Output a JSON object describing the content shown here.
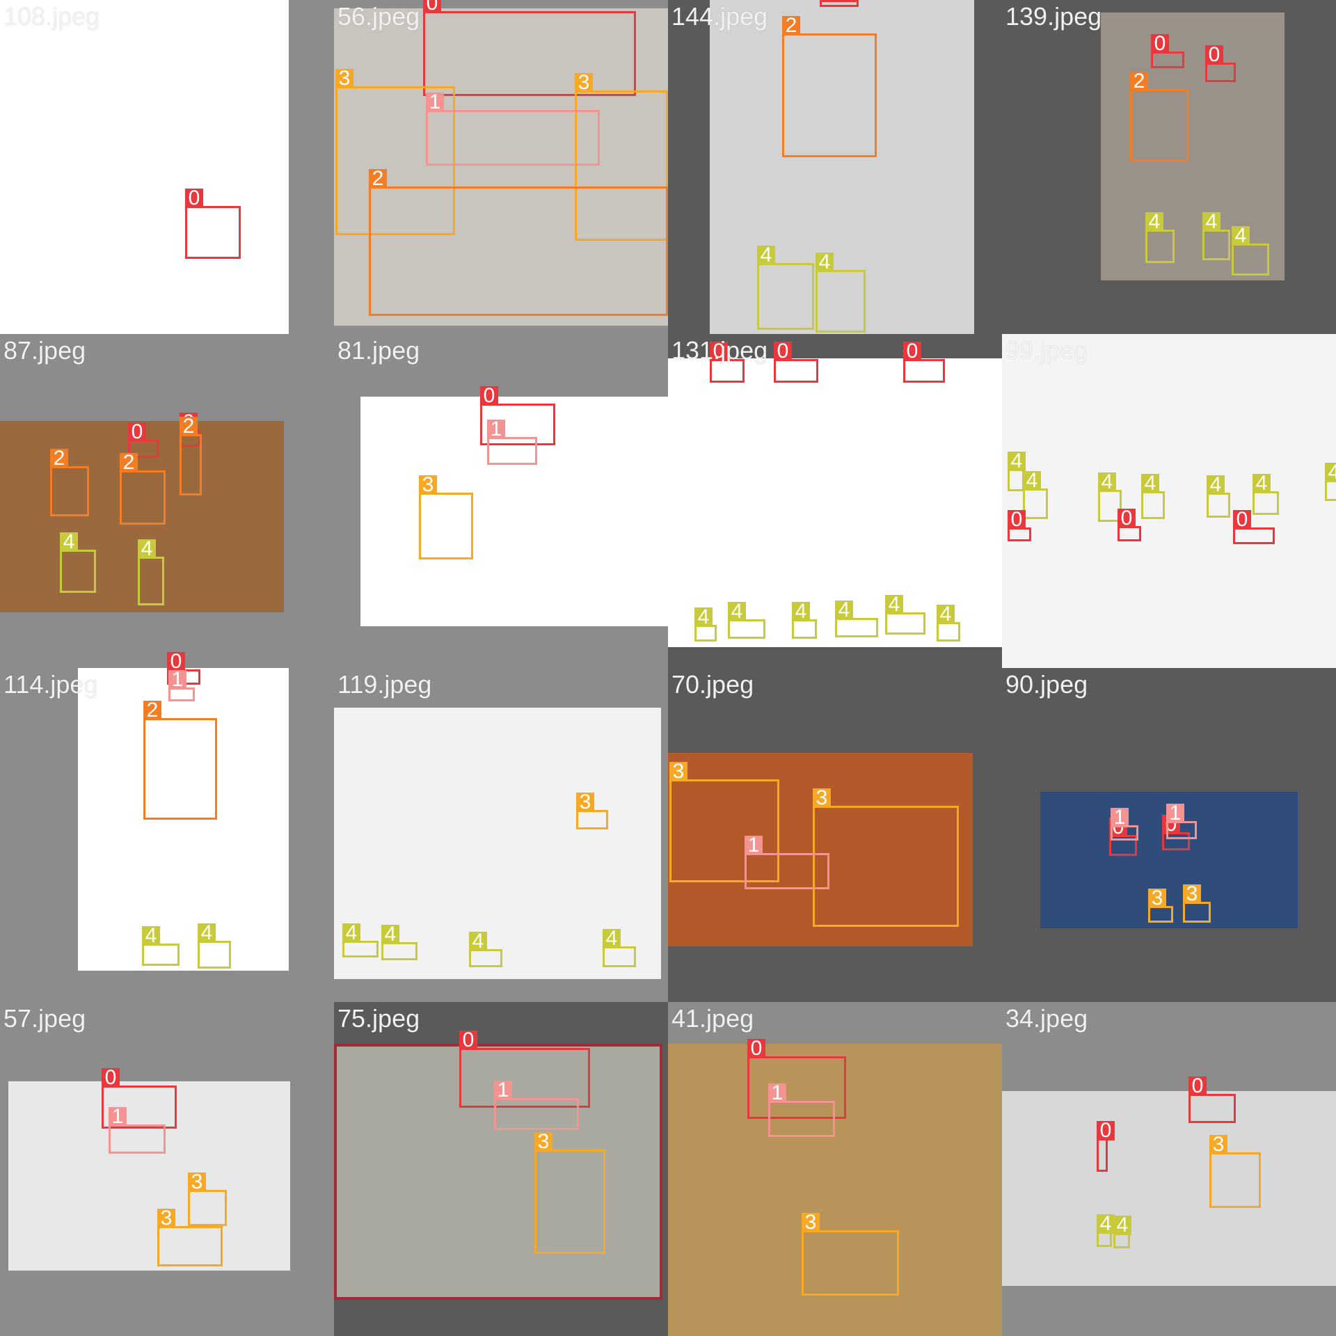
{
  "classes": {
    "0": {
      "color": "#e8383d"
    },
    "1": {
      "color": "#f59393"
    },
    "2": {
      "color": "#f27d25"
    },
    "3": {
      "color": "#f7a825"
    },
    "4": {
      "color": "#c7ca3a"
    }
  },
  "tiles": [
    {
      "filename": "108.jpeg",
      "bg": "#8c8c8c",
      "photo_color": "#ffffff",
      "labels": [
        "0"
      ]
    },
    {
      "filename": "56.jpeg",
      "bg": "#8c8c8c",
      "photo_color": "#c9c4bd",
      "labels": [
        "0",
        "3",
        "3",
        "1",
        "2"
      ]
    },
    {
      "filename": "144.jpeg",
      "bg": "#5a5a5a",
      "photo_color": "#d3d3d3",
      "labels": [
        "0",
        "2",
        "4",
        "4"
      ]
    },
    {
      "filename": "139.jpeg",
      "bg": "#5a5a5a",
      "photo_color": "#9a9288",
      "labels": [
        "0",
        "0",
        "2",
        "4",
        "4",
        "4"
      ]
    },
    {
      "filename": "87.jpeg",
      "bg": "#8c8c8c",
      "photo_color": "#9a6a3e",
      "labels": [
        "0",
        "0",
        "2",
        "2",
        "2",
        "4",
        "4"
      ]
    },
    {
      "filename": "81.jpeg",
      "bg": "#8c8c8c",
      "photo_color": "#ffffff",
      "labels": [
        "0",
        "1",
        "3"
      ]
    },
    {
      "filename": "131.jpeg",
      "bg": "#5a5a5a",
      "photo_color": "#ffffff",
      "labels": [
        "0",
        "0",
        "0",
        "4",
        "4",
        "4",
        "4",
        "4",
        "4"
      ]
    },
    {
      "filename": "99.jpeg",
      "bg": "#ffffff",
      "photo_color": "#f4f4f4",
      "labels": [
        "4",
        "4",
        "4",
        "4",
        "4",
        "4",
        "4",
        "0",
        "0",
        "0"
      ]
    },
    {
      "filename": "114.jpeg",
      "bg": "#8c8c8c",
      "photo_color": "#ffffff",
      "labels": [
        "0",
        "1",
        "2",
        "4",
        "4"
      ]
    },
    {
      "filename": "119.jpeg",
      "bg": "#8c8c8c",
      "photo_color": "#f2f2f2",
      "labels": [
        "3",
        "4",
        "4",
        "4",
        "4"
      ]
    },
    {
      "filename": "70.jpeg",
      "bg": "#5a5a5a",
      "photo_color": "#b45a2a",
      "labels": [
        "3",
        "3",
        "1"
      ]
    },
    {
      "filename": "90.jpeg",
      "bg": "#5a5a5a",
      "photo_color": "#2f4c7a",
      "labels": [
        "0",
        "0",
        "1",
        "1",
        "3",
        "3"
      ]
    },
    {
      "filename": "57.jpeg",
      "bg": "#8c8c8c",
      "photo_color": "#e8e8e8",
      "labels": [
        "0",
        "1",
        "3",
        "3"
      ]
    },
    {
      "filename": "75.jpeg",
      "bg": "#5a5a5a",
      "photo_color": "#a9a9a0",
      "labels": [
        "0",
        "1",
        "3"
      ]
    },
    {
      "filename": "41.jpeg",
      "bg": "#8c8c8c",
      "photo_color": "#b8935a",
      "labels": [
        "0",
        "1",
        "3"
      ]
    },
    {
      "filename": "34.jpeg",
      "bg": "#8c8c8c",
      "photo_color": "#d8d8d8",
      "labels": [
        "0",
        "0",
        "3",
        "4",
        "4"
      ]
    }
  ]
}
